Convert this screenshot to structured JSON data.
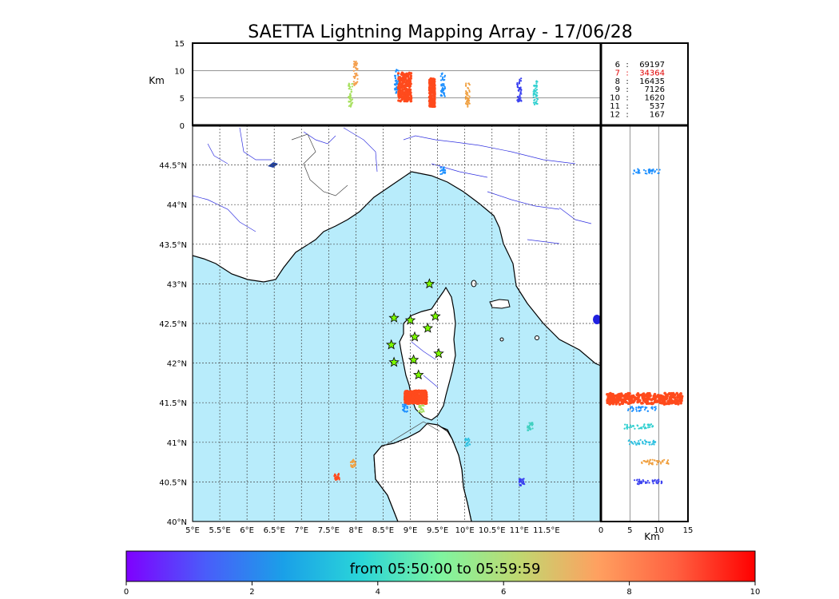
{
  "title": "SAETTA Lightning Mapping Array - 17/06/28",
  "colors": {
    "sea": "#b8ecfb",
    "land": "#ffffff",
    "coast": "#000000",
    "river": "#3030e0",
    "border": "#444444",
    "station": "#7cfc00",
    "source_dense": "#ff4a1c"
  },
  "chart_data": [
    {
      "type": "scatter",
      "panel": "altitude-vs-longitude",
      "ylabel": "Km",
      "xlim": [
        5,
        12.5
      ],
      "ylim": [
        0,
        15
      ],
      "ytick_labels": [
        "0",
        "5",
        "10",
        "15"
      ],
      "grid_lines_y": [
        5,
        10
      ],
      "clusters": [
        {
          "x": 7.9,
          "y": 5.5,
          "color": "#a8e060"
        },
        {
          "x": 8.0,
          "y": 9.5,
          "color": "#f4a050"
        },
        {
          "x": 8.75,
          "y": 8.0,
          "color": "#1e90ff"
        },
        {
          "x": 8.9,
          "y": 7.0,
          "color": "#ff4a1c"
        },
        {
          "x": 9.4,
          "y": 6.0,
          "color": "#ff4a1c"
        },
        {
          "x": 9.6,
          "y": 7.5,
          "color": "#1e90ff"
        },
        {
          "x": 10.05,
          "y": 5.5,
          "color": "#f0a040"
        },
        {
          "x": 11.0,
          "y": 6.5,
          "color": "#3a40f0"
        },
        {
          "x": 11.3,
          "y": 6.0,
          "color": "#30d0d0"
        }
      ]
    },
    {
      "type": "table",
      "panel": "source-count-by-stations",
      "rows": [
        {
          "stations": "6",
          "count": "69197",
          "color": "#000000"
        },
        {
          "stations": "7",
          "count": "34364",
          "color": "#e00000"
        },
        {
          "stations": "8",
          "count": "16435",
          "color": "#000000"
        },
        {
          "stations": "9",
          "count": "7126",
          "color": "#000000"
        },
        {
          "stations": "10",
          "count": "1620",
          "color": "#000000"
        },
        {
          "stations": "11",
          "count": "537",
          "color": "#000000"
        },
        {
          "stations": "12",
          "count": "167",
          "color": "#000000"
        }
      ]
    },
    {
      "type": "scatter",
      "panel": "plan-view-map",
      "xlim": [
        5,
        12.5
      ],
      "ylim": [
        40,
        45
      ],
      "x_tick_labels": [
        "5°E",
        "5.5°E",
        "6°E",
        "6.5°E",
        "7°E",
        "7.5°E",
        "8°E",
        "8.5°E",
        "9°E",
        "9.5°E",
        "10°E",
        "10.5°E",
        "11°E",
        "11.5°E"
      ],
      "y_tick_labels": [
        "40°N",
        "40.5°N",
        "41°N",
        "41.5°N",
        "42°N",
        "42.5°N",
        "43°N",
        "43.5°N",
        "44°N",
        "44.5°N"
      ],
      "grid": true,
      "stations": [
        {
          "lon": 9.35,
          "lat": 43.0
        },
        {
          "lon": 8.7,
          "lat": 42.57
        },
        {
          "lon": 9.0,
          "lat": 42.54
        },
        {
          "lon": 9.46,
          "lat": 42.59
        },
        {
          "lon": 9.32,
          "lat": 42.44
        },
        {
          "lon": 9.08,
          "lat": 42.33
        },
        {
          "lon": 8.65,
          "lat": 42.23
        },
        {
          "lon": 9.06,
          "lat": 42.04
        },
        {
          "lon": 8.7,
          "lat": 42.01
        },
        {
          "lon": 9.52,
          "lat": 42.12
        },
        {
          "lon": 9.15,
          "lat": 41.85
        }
      ],
      "clusters": [
        {
          "lon": 9.1,
          "lat": 41.57,
          "color": "#ff4a1c"
        },
        {
          "lon": 8.9,
          "lat": 41.43,
          "color": "#1e90ff"
        },
        {
          "lon": 9.2,
          "lat": 41.42,
          "color": "#a8e060"
        },
        {
          "lon": 9.6,
          "lat": 44.43,
          "color": "#1e90ff"
        },
        {
          "lon": 10.05,
          "lat": 41.0,
          "color": "#30c0e0"
        },
        {
          "lon": 11.2,
          "lat": 41.2,
          "color": "#40d0c0"
        },
        {
          "lon": 11.05,
          "lat": 40.5,
          "color": "#3a40f0"
        },
        {
          "lon": 7.95,
          "lat": 40.73,
          "color": "#f0a040"
        },
        {
          "lon": 7.65,
          "lat": 40.57,
          "color": "#ff4a1c"
        }
      ]
    },
    {
      "type": "scatter",
      "panel": "latitude-vs-altitude",
      "xlabel": "Km",
      "xlim": [
        0,
        15
      ],
      "ylim": [
        40,
        45
      ],
      "x_tick_labels": [
        "0",
        "5",
        "10",
        "15"
      ],
      "grid_lines_x": [
        5,
        10
      ],
      "clusters": [
        {
          "x": 7.5,
          "y": 41.55,
          "color": "#ff4a1c"
        },
        {
          "x": 7.0,
          "y": 41.42,
          "color": "#1e90ff"
        },
        {
          "x": 8.0,
          "y": 44.42,
          "color": "#1e90ff"
        },
        {
          "x": 6.5,
          "y": 41.2,
          "color": "#30d0d0"
        },
        {
          "x": 7.0,
          "y": 41.0,
          "color": "#30c0e0"
        },
        {
          "x": 8.0,
          "y": 40.5,
          "color": "#3a40f0"
        },
        {
          "x": 9.5,
          "y": 40.75,
          "color": "#f0a040"
        }
      ]
    },
    {
      "type": "colorbar",
      "label": "from 05:50:00 to 05:59:59",
      "tick_labels": [
        "0",
        "2",
        "4",
        "6",
        "8",
        "10"
      ],
      "range": [
        0,
        10
      ],
      "stops": [
        "#7f00ff",
        "#4a5cfa",
        "#1aa0e8",
        "#2ad6d8",
        "#7ff5a0",
        "#c0d870",
        "#ffa060",
        "#ff6040",
        "#ff0000"
      ]
    }
  ]
}
